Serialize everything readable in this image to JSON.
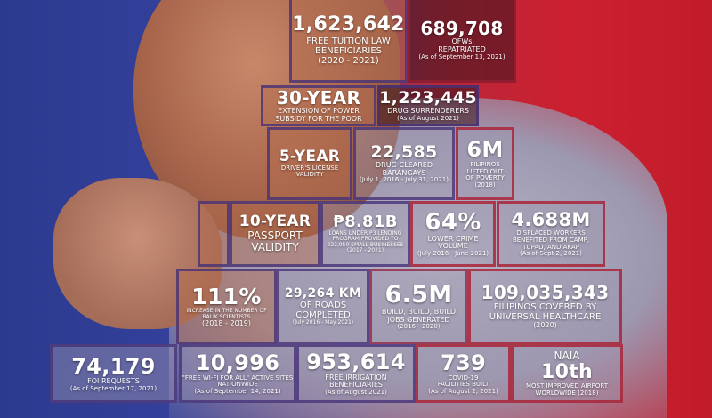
{
  "colors": {
    "left_background": "#2b3a8f",
    "right_background": "#cc2030"
  },
  "stats": [
    {
      "value": "1,623,642",
      "label": "FREE TUITION LAW BENEFICIARIES",
      "note": "(2020 - 2021)"
    },
    {
      "value": "689,708",
      "label": "OFWs REPATRIATED",
      "note": "(As of September 13, 2021)"
    },
    {
      "value": "30-YEAR",
      "label": "EXTENSION OF POWER SUBSIDY FOR THE POOR",
      "note": ""
    },
    {
      "value": "1,223,445",
      "label": "DRUG SURRENDERERS",
      "note": "(As of August 2021)"
    },
    {
      "value": "5-YEAR",
      "label": "DRIVER'S LICENSE VALIDITY",
      "note": ""
    },
    {
      "value": "22,585",
      "label": "DRUG-CLEARED BARANGAYS",
      "note": "(July 1, 2016 - July 31, 2021)"
    },
    {
      "value": "6M",
      "label": "FILIPINOS LIFTED OUT OF POVERTY",
      "note": "(2018)"
    },
    {
      "value": "10-YEAR",
      "label": "PASSPORT VALIDITY",
      "note": ""
    },
    {
      "value": "₱8.81B",
      "label": "LOANS UNDER P3 LENDING PROGRAM PROVIDED TO 222,950 SMALL BUSINESSES",
      "note": "(2017 - 2021)"
    },
    {
      "value": "64%",
      "label": "LOWER CRIME VOLUME",
      "note": "(July 2016 - June 2021)"
    },
    {
      "value": "4.688M",
      "label": "DISPLACED WORKERS BENEFITED FROM CAMP, TUPAD, AND AKAP",
      "note": "(As of Sept 2, 2021)"
    },
    {
      "value": "111%",
      "label": "INCREASE IN THE NUMBER OF BALIK SCIENTISTS",
      "note": "(2018 - 2019)"
    },
    {
      "value": "29,264 KM",
      "label": "OF ROADS COMPLETED",
      "note": "(July 2016 - May 2021)"
    },
    {
      "value": "6.5M",
      "label": "BUILD, BUILD, BUILD JOBS GENERATED",
      "note": "(2016 - 2020)"
    },
    {
      "value": "109,035,343",
      "label": "FILIPINOS COVERED BY UNIVERSAL HEALTHCARE",
      "note": "(2020)"
    },
    {
      "value": "74,179",
      "label": "FOI REQUESTS",
      "note": "(As of September 17, 2021)"
    },
    {
      "value": "10,996",
      "label": "\"FREE WI-FI FOR ALL\" ACTIVE SITES NATIONWIDE",
      "note": "(As of September 14, 2021)"
    },
    {
      "value": "953,614",
      "label": "FREE IRRIGATION BENEFICIARIES",
      "note": "(As of August 2021)"
    },
    {
      "value": "739",
      "label": "COVID-19 FACILITIES BUILT",
      "note": "(As of August 2, 2021)"
    },
    {
      "value": "10th",
      "label": "MOST IMPROVED AIRPORT WORLDWIDE (2018)",
      "note": "",
      "prefix": "NAIA"
    }
  ]
}
